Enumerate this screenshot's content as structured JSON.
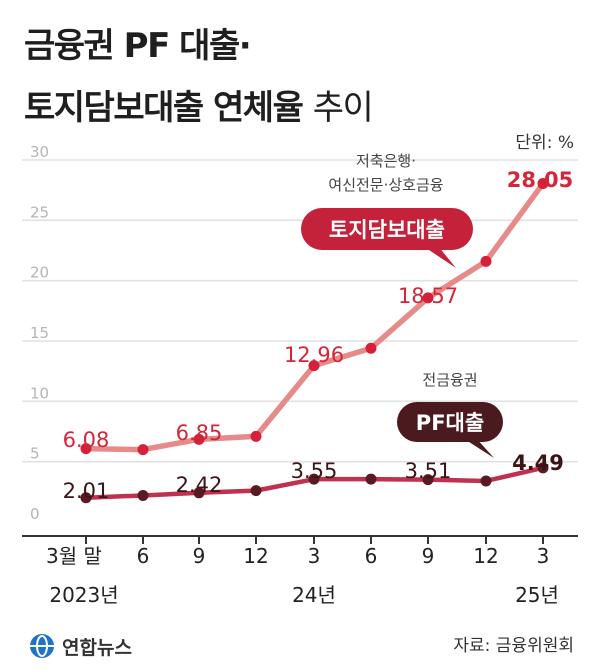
{
  "title_line1": "금융권 PF 대출·",
  "title_line2_bold": "토지담보대출 연체율",
  "title_line2_light": "추이",
  "unit": "단위: %",
  "source": "자료: 금융위원회",
  "logo_text": "연합뉴스",
  "colors": {
    "land_line": "#e68a8a",
    "land_marker": "#d61f39",
    "land_label": "#d32639",
    "land_badge": "#c4213a",
    "pf_line": "#c0304f",
    "pf_marker": "#5a1a22",
    "pf_label": "#3b1416",
    "pf_badge": "#4a1a1f"
  },
  "chart_data": {
    "type": "line",
    "x": [
      "3월 말",
      "6",
      "9",
      "12",
      "3",
      "6",
      "9",
      "12",
      "3"
    ],
    "x_year_labels": [
      "2023년",
      "24년",
      "25년"
    ],
    "ylim": [
      0,
      30
    ],
    "yticks": [
      0,
      5,
      10,
      15,
      20,
      25,
      30
    ],
    "grid": true,
    "series": [
      {
        "name": "토지담보대출",
        "note": [
          "저축은행·",
          "여신전문·상호금융"
        ],
        "values": [
          6.08,
          6.0,
          6.85,
          7.1,
          12.96,
          14.4,
          18.57,
          21.6,
          28.05
        ],
        "labels": [
          "6.08",
          "",
          "6.85",
          "",
          "12.96",
          "",
          "18.57",
          "",
          "28.05"
        ]
      },
      {
        "name": "PF대출",
        "note": [
          "전금융권"
        ],
        "values": [
          2.01,
          2.2,
          2.42,
          2.6,
          3.55,
          3.55,
          3.51,
          3.4,
          4.49
        ],
        "labels": [
          "2.01",
          "",
          "2.42",
          "",
          "3.55",
          "",
          "3.51",
          "",
          "4.49"
        ]
      }
    ]
  }
}
